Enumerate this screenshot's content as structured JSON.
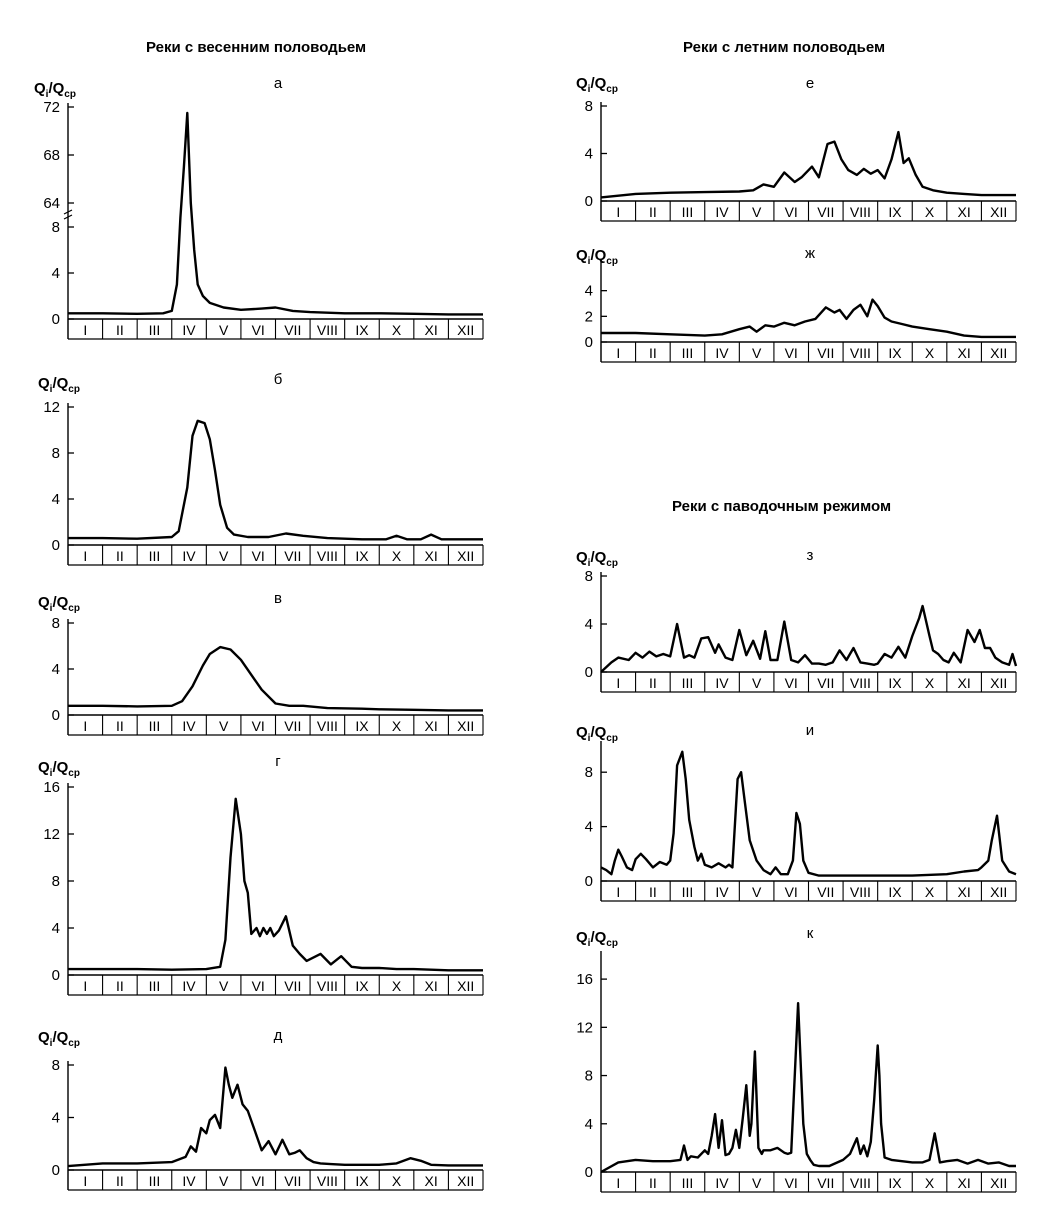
{
  "headings": {
    "spring": "Реки с весенним половодьем",
    "summer": "Реки с летним половодьем",
    "flood": "Реки с паводочным режимом"
  },
  "axis": {
    "ylabel_main": "Q",
    "ylabel_sub1": "i",
    "ylabel_slash": "/Q",
    "ylabel_sub2": "ср",
    "months": [
      "I",
      "II",
      "III",
      "IV",
      "V",
      "VI",
      "VII",
      "VIII",
      "IX",
      "X",
      "XI",
      "XII"
    ]
  },
  "chart_data": [
    {
      "id": "a",
      "title": "а",
      "type": "line",
      "xlim": [
        0,
        12
      ],
      "axis_break": {
        "lower": [
          0,
          8
        ],
        "upper": [
          64,
          72
        ]
      },
      "yticks": [
        0,
        4,
        8,
        64,
        68,
        72
      ],
      "xlabel": "",
      "ylabel": "Qi/Qср",
      "x": [
        0,
        1,
        2,
        2.75,
        3.0,
        3.15,
        3.25,
        3.35,
        3.45,
        3.55,
        3.65,
        3.75,
        3.9,
        4.1,
        4.5,
        5,
        5.6,
        6.0,
        6.5,
        7,
        8,
        9,
        10,
        11,
        12
      ],
      "y": [
        0.5,
        0.5,
        0.45,
        0.5,
        0.7,
        3,
        30,
        67,
        71.5,
        64,
        6,
        3,
        2,
        1.4,
        1.0,
        0.8,
        0.9,
        1.0,
        0.7,
        0.6,
        0.5,
        0.5,
        0.45,
        0.4,
        0.4
      ]
    },
    {
      "id": "b",
      "title": "б",
      "type": "line",
      "xlim": [
        0,
        12
      ],
      "ylim": [
        0,
        12
      ],
      "yticks": [
        0,
        4,
        8,
        12
      ],
      "xlabel": "",
      "ylabel": "Qi/Qср",
      "x": [
        0,
        1,
        2,
        3,
        3.2,
        3.45,
        3.6,
        3.75,
        3.95,
        4.1,
        4.25,
        4.4,
        4.6,
        4.8,
        5.2,
        5.8,
        6.3,
        6.8,
        7.5,
        8.5,
        9.2,
        9.5,
        9.8,
        10.2,
        10.5,
        10.8,
        11.5,
        12
      ],
      "y": [
        0.6,
        0.6,
        0.55,
        0.7,
        1.2,
        5,
        9.5,
        10.8,
        10.6,
        9.2,
        6.5,
        3.5,
        1.5,
        0.9,
        0.7,
        0.7,
        1.0,
        0.8,
        0.6,
        0.5,
        0.5,
        0.8,
        0.5,
        0.5,
        0.9,
        0.5,
        0.5,
        0.5
      ]
    },
    {
      "id": "v",
      "title": "в",
      "type": "line",
      "xlim": [
        0,
        12
      ],
      "ylim": [
        0,
        8
      ],
      "yticks": [
        0,
        4,
        8
      ],
      "xlabel": "",
      "ylabel": "Qi/Qср",
      "x": [
        0,
        1,
        2,
        3,
        3.3,
        3.6,
        3.9,
        4.1,
        4.4,
        4.7,
        5.0,
        5.3,
        5.6,
        6.0,
        6.4,
        6.8,
        7.5,
        8.5,
        9,
        10,
        11,
        12
      ],
      "y": [
        0.8,
        0.8,
        0.75,
        0.8,
        1.2,
        2.5,
        4.3,
        5.3,
        5.9,
        5.7,
        4.8,
        3.5,
        2.2,
        1.0,
        0.8,
        0.8,
        0.6,
        0.55,
        0.5,
        0.45,
        0.4,
        0.4
      ]
    },
    {
      "id": "g",
      "title": "г",
      "type": "line",
      "xlim": [
        0,
        12
      ],
      "ylim": [
        0,
        16
      ],
      "yticks": [
        0,
        4,
        8,
        12,
        16
      ],
      "xlabel": "",
      "ylabel": "Qi/Qср",
      "x": [
        0,
        1,
        2,
        3,
        4,
        4.4,
        4.55,
        4.7,
        4.85,
        5.0,
        5.1,
        5.2,
        5.3,
        5.45,
        5.55,
        5.65,
        5.75,
        5.85,
        5.95,
        6.1,
        6.3,
        6.5,
        6.7,
        6.9,
        7.3,
        7.6,
        7.9,
        8.2,
        8.5,
        9,
        9.5,
        10,
        10.5,
        11,
        11.5,
        12
      ],
      "y": [
        0.5,
        0.5,
        0.5,
        0.45,
        0.5,
        0.7,
        3,
        10,
        15,
        12,
        8,
        7,
        3.5,
        4,
        3.3,
        4,
        3.5,
        4,
        3.3,
        3.8,
        5,
        2.5,
        1.8,
        1.2,
        1.8,
        0.9,
        1.6,
        0.7,
        0.6,
        0.6,
        0.5,
        0.5,
        0.45,
        0.4,
        0.4,
        0.4
      ]
    },
    {
      "id": "d",
      "title": "д",
      "type": "line",
      "xlim": [
        0,
        12
      ],
      "ylim": [
        0,
        8
      ],
      "yticks": [
        0,
        4,
        8
      ],
      "xlabel": "",
      "ylabel": "Qi/Qср",
      "x": [
        0,
        1,
        2,
        3,
        3.4,
        3.55,
        3.7,
        3.85,
        4.0,
        4.1,
        4.25,
        4.4,
        4.55,
        4.65,
        4.75,
        4.9,
        5.05,
        5.2,
        5.4,
        5.6,
        5.8,
        6.0,
        6.2,
        6.4,
        6.55,
        6.7,
        6.9,
        7.1,
        7.3,
        7.6,
        8,
        9,
        9.5,
        9.9,
        10.2,
        10.5,
        11,
        12
      ],
      "y": [
        0.3,
        0.5,
        0.5,
        0.6,
        1.0,
        1.8,
        1.4,
        3.2,
        2.8,
        3.8,
        4.2,
        3.2,
        7.8,
        6.5,
        5.5,
        6.5,
        5.0,
        4.5,
        3.0,
        1.5,
        2.2,
        1.2,
        2.3,
        1.2,
        1.3,
        1.5,
        0.9,
        0.6,
        0.5,
        0.45,
        0.4,
        0.4,
        0.5,
        0.9,
        0.7,
        0.4,
        0.35,
        0.35
      ]
    },
    {
      "id": "e",
      "title": "е",
      "type": "line",
      "xlim": [
        0,
        12
      ],
      "ylim": [
        0,
        8
      ],
      "yticks": [
        0,
        4,
        8
      ],
      "xlabel": "",
      "ylabel": "Qi/Qср",
      "x": [
        0,
        1,
        2,
        3,
        4,
        4.4,
        4.7,
        5.0,
        5.3,
        5.6,
        5.8,
        6.1,
        6.3,
        6.55,
        6.75,
        6.95,
        7.15,
        7.4,
        7.6,
        7.8,
        8.0,
        8.2,
        8.4,
        8.6,
        8.75,
        8.9,
        9.1,
        9.3,
        9.6,
        10,
        10.5,
        11,
        12
      ],
      "y": [
        0.3,
        0.6,
        0.7,
        0.75,
        0.8,
        0.9,
        1.4,
        1.2,
        2.4,
        1.6,
        2.0,
        2.9,
        2.0,
        4.8,
        5.0,
        3.5,
        2.6,
        2.2,
        2.7,
        2.3,
        2.6,
        1.9,
        3.5,
        5.8,
        3.2,
        3.6,
        2.2,
        1.2,
        0.9,
        0.7,
        0.6,
        0.5,
        0.5
      ]
    },
    {
      "id": "zh",
      "title": "ж",
      "type": "line",
      "xlim": [
        0,
        12
      ],
      "ylim": [
        0,
        6
      ],
      "yticks": [
        0,
        2,
        4
      ],
      "xlabel": "",
      "ylabel": "Qi/Qср",
      "x": [
        0,
        1,
        2,
        3,
        3.5,
        4.0,
        4.3,
        4.5,
        4.75,
        5.0,
        5.3,
        5.6,
        5.9,
        6.2,
        6.5,
        6.75,
        6.9,
        7.1,
        7.3,
        7.5,
        7.7,
        7.85,
        8.0,
        8.2,
        8.4,
        8.7,
        9,
        9.5,
        10,
        10.5,
        11,
        12
      ],
      "y": [
        0.7,
        0.7,
        0.6,
        0.5,
        0.6,
        1.0,
        1.2,
        0.8,
        1.3,
        1.2,
        1.5,
        1.3,
        1.6,
        1.8,
        2.7,
        2.3,
        2.5,
        1.8,
        2.5,
        2.9,
        2.0,
        3.3,
        2.8,
        1.9,
        1.6,
        1.4,
        1.2,
        1.0,
        0.8,
        0.5,
        0.4,
        0.4
      ]
    },
    {
      "id": "z",
      "title": "з",
      "type": "line",
      "xlim": [
        0,
        12
      ],
      "ylim": [
        0,
        8
      ],
      "yticks": [
        0,
        4,
        8
      ],
      "xlabel": "",
      "ylabel": "Qi/Qср",
      "x": [
        0,
        0.3,
        0.5,
        0.8,
        1.0,
        1.2,
        1.4,
        1.6,
        1.8,
        2.0,
        2.2,
        2.4,
        2.55,
        2.7,
        2.9,
        3.1,
        3.3,
        3.4,
        3.6,
        3.8,
        4.0,
        4.2,
        4.4,
        4.6,
        4.75,
        4.9,
        5.1,
        5.3,
        5.5,
        5.7,
        5.9,
        6.1,
        6.3,
        6.5,
        6.7,
        6.9,
        7.1,
        7.3,
        7.5,
        7.7,
        7.9,
        8.0,
        8.2,
        8.4,
        8.6,
        8.8,
        9.0,
        9.2,
        9.3,
        9.5,
        9.6,
        9.75,
        9.9,
        10.05,
        10.2,
        10.4,
        10.6,
        10.8,
        10.95,
        11.1,
        11.25,
        11.4,
        11.6,
        11.8,
        11.9,
        12
      ],
      "y": [
        0,
        0.8,
        1.2,
        1.0,
        1.6,
        1.2,
        1.7,
        1.3,
        1.5,
        1.3,
        4.0,
        1.2,
        1.4,
        1.2,
        2.8,
        2.9,
        1.6,
        2.3,
        1.2,
        1.0,
        3.5,
        1.4,
        2.6,
        1.1,
        3.4,
        1.0,
        1.0,
        4.2,
        1.0,
        0.8,
        1.4,
        0.7,
        0.7,
        0.6,
        0.8,
        1.8,
        1.0,
        2.0,
        0.8,
        0.7,
        0.6,
        0.7,
        1.5,
        1.2,
        2.1,
        1.2,
        3.0,
        4.5,
        5.5,
        3.0,
        1.8,
        1.5,
        1.0,
        0.8,
        1.6,
        0.8,
        3.5,
        2.5,
        3.5,
        2.0,
        2.0,
        1.2,
        0.8,
        0.6,
        1.5,
        0.5
      ]
    },
    {
      "id": "i",
      "title": "и",
      "type": "line",
      "xlim": [
        0,
        12
      ],
      "ylim": [
        0,
        10
      ],
      "yticks": [
        0,
        4,
        8
      ],
      "xlabel": "",
      "ylabel": "Qi/Qср",
      "x": [
        0,
        0.15,
        0.3,
        0.4,
        0.5,
        0.6,
        0.75,
        0.9,
        1.0,
        1.15,
        1.3,
        1.5,
        1.7,
        1.9,
        2.0,
        2.1,
        2.2,
        2.35,
        2.45,
        2.55,
        2.7,
        2.8,
        2.9,
        3.0,
        3.2,
        3.4,
        3.6,
        3.7,
        3.8,
        3.95,
        4.05,
        4.15,
        4.3,
        4.5,
        4.7,
        4.9,
        5.05,
        5.2,
        5.4,
        5.55,
        5.65,
        5.75,
        5.85,
        6.0,
        6.3,
        7,
        8,
        9,
        10,
        10.5,
        10.9,
        11.0,
        11.2,
        11.3,
        11.45,
        11.6,
        11.8,
        12
      ],
      "y": [
        1.0,
        0.8,
        0.5,
        1.5,
        2.3,
        1.8,
        1.0,
        0.8,
        1.6,
        2.0,
        1.6,
        1.0,
        1.4,
        1.2,
        1.5,
        3.5,
        8.5,
        9.5,
        7.5,
        4.5,
        2.5,
        1.5,
        2.0,
        1.2,
        1.0,
        1.3,
        1.0,
        1.2,
        1.0,
        7.5,
        8.0,
        6.0,
        3.0,
        1.5,
        0.8,
        0.5,
        1.0,
        0.5,
        0.5,
        1.5,
        5.0,
        4.2,
        1.5,
        0.6,
        0.4,
        0.4,
        0.4,
        0.4,
        0.5,
        0.7,
        0.8,
        1.0,
        1.5,
        3.0,
        4.8,
        1.5,
        0.7,
        0.5
      ]
    },
    {
      "id": "k",
      "title": "к",
      "type": "line",
      "xlim": [
        0,
        12
      ],
      "ylim": [
        0,
        18
      ],
      "yticks": [
        0,
        4,
        8,
        12,
        16
      ],
      "xlabel": "",
      "ylabel": "Qi/Qср",
      "x": [
        0,
        0.5,
        1.0,
        1.5,
        2.0,
        2.3,
        2.4,
        2.5,
        2.6,
        2.8,
        3.0,
        3.1,
        3.2,
        3.3,
        3.4,
        3.5,
        3.6,
        3.7,
        3.8,
        3.9,
        4.0,
        4.1,
        4.2,
        4.3,
        4.35,
        4.45,
        4.55,
        4.65,
        4.7,
        4.9,
        5.1,
        5.3,
        5.4,
        5.5,
        5.7,
        5.85,
        5.95,
        6.05,
        6.15,
        6.3,
        6.6,
        7.0,
        7.2,
        7.4,
        7.5,
        7.6,
        7.7,
        7.8,
        7.9,
        8.0,
        8.05,
        8.1,
        8.2,
        8.4,
        8.7,
        9.0,
        9.3,
        9.5,
        9.65,
        9.8,
        10.0,
        10.3,
        10.6,
        10.9,
        11.2,
        11.5,
        11.8,
        12
      ],
      "y": [
        0,
        0.8,
        1.0,
        0.9,
        0.9,
        1.0,
        2.2,
        1.0,
        1.3,
        1.2,
        1.8,
        1.5,
        3.0,
        4.8,
        2.0,
        4.3,
        1.4,
        1.5,
        2.0,
        3.5,
        2.0,
        4.5,
        7.2,
        3.0,
        4.0,
        10.0,
        2.0,
        1.5,
        1.8,
        1.8,
        2.0,
        1.6,
        1.5,
        1.6,
        14.0,
        4.0,
        1.5,
        1.0,
        0.6,
        0.5,
        0.5,
        1.0,
        1.5,
        2.8,
        1.5,
        2.2,
        1.3,
        2.5,
        6.0,
        10.5,
        8.0,
        4.0,
        1.2,
        1.0,
        0.9,
        0.8,
        0.8,
        1.0,
        3.2,
        0.8,
        0.9,
        1.0,
        0.7,
        1.0,
        0.7,
        0.8,
        0.5,
        0.5
      ]
    }
  ]
}
